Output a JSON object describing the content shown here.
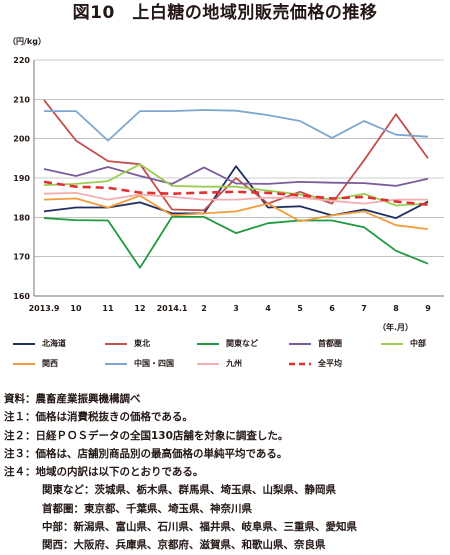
{
  "title": "図10　上白糖の地域別販売価格の推移",
  "ylabel": "（円/kg）",
  "xunit": "（年.月）",
  "notes": [
    "資料：農畜産業振興機構調べ",
    "注１：価格は消費税抜きの価格である。",
    "注２：日経ＰＯＳデータの全国130店舗を対象に調査した。",
    "注３：価格は、店舗別商品別の最高価格の単純平均である。",
    "注４：地域の内訳は以下のとおりである。"
  ],
  "region_notes": [
    "関東など：茨城県、栃木県、群馬県、埼玉県、山梨県、静岡県",
    "首都圏：東京都、千葉県、埼玉県、神奈川県",
    "中部：新潟県、富山県、石川県、福井県、岐阜県、三重県、愛知県",
    "関西：大阪府、兵庫県、京都府、滋賀県、和歌山県、奈良県"
  ],
  "chart_data": {
    "type": "line",
    "categories": [
      "2013.9",
      "10",
      "11",
      "12",
      "2014.1",
      "2",
      "3",
      "4",
      "5",
      "6",
      "7",
      "8",
      "9"
    ],
    "ylim": [
      160,
      220
    ],
    "yticks": [
      160,
      170,
      180,
      190,
      200,
      210,
      220
    ],
    "grid": true,
    "legend_placement": "bottom",
    "series": [
      {
        "name": "北海道",
        "color": "#1f2f5f",
        "dash": false,
        "values": [
          181.5,
          182.5,
          182.5,
          183.8,
          181,
          181,
          193,
          182.5,
          182.8,
          180.5,
          182,
          179.8,
          184
        ]
      },
      {
        "name": "東北",
        "color": "#c0504d",
        "dash": false,
        "values": [
          209.8,
          199.5,
          194.3,
          193.5,
          182,
          181.8,
          190,
          183.5,
          186.5,
          183.5,
          194.5,
          206.2,
          195
        ]
      },
      {
        "name": "関東など",
        "color": "#1f9a3e",
        "dash": false,
        "values": [
          179.8,
          179.3,
          179.2,
          167.2,
          180.1,
          180.1,
          176,
          178.5,
          179.2,
          179.2,
          177.5,
          171.5,
          168.2
        ]
      },
      {
        "name": "首都圏",
        "color": "#7b5c9a",
        "dash": false,
        "values": [
          192.3,
          190.5,
          192.8,
          190.5,
          188.5,
          192.7,
          188.6,
          188.5,
          189,
          188.8,
          188.7,
          188,
          189.8
        ]
      },
      {
        "name": "中部",
        "color": "#9acd4e",
        "dash": false,
        "values": [
          188.2,
          188.5,
          189.2,
          193.5,
          188,
          187.8,
          187.8,
          186.8,
          185.8,
          184.5,
          186,
          183,
          183.5
        ]
      },
      {
        "name": "関西",
        "color": "#f29c3c",
        "dash": false,
        "values": [
          184.5,
          184.8,
          182.5,
          185.5,
          180.5,
          181,
          181.5,
          183.5,
          179,
          180.5,
          181.5,
          178,
          177
        ]
      },
      {
        "name": "中国・四国",
        "color": "#7ea7cf",
        "dash": false,
        "values": [
          207,
          207,
          199.5,
          207,
          207,
          207.3,
          207.1,
          206,
          204.5,
          200.2,
          204.5,
          201,
          200.5
        ]
      },
      {
        "name": "九州",
        "color": "#f2aeb0",
        "dash": false,
        "values": [
          186,
          186.2,
          184.5,
          185.8,
          185.2,
          184.5,
          184.5,
          185,
          185,
          184.2,
          183.5,
          184.5,
          184.5
        ]
      },
      {
        "name": "全平均",
        "color": "#e03030",
        "dash": true,
        "values": [
          189,
          187.8,
          187.5,
          186.3,
          186,
          186.3,
          186.5,
          186.2,
          185.6,
          184.8,
          185.2,
          184,
          183.2
        ]
      }
    ]
  }
}
